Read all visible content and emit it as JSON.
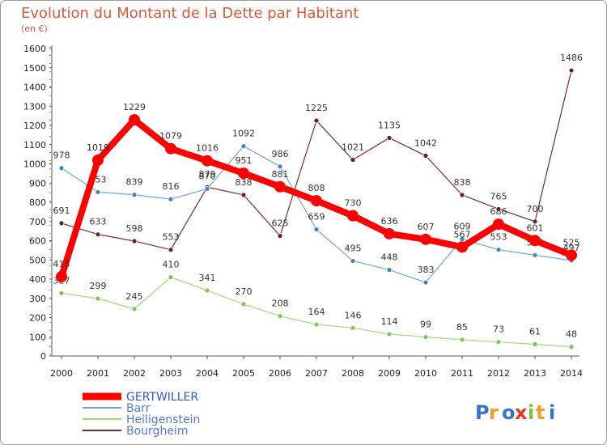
{
  "chart_data": {
    "type": "line",
    "title": "Evolution du Montant de la Dette par Habitant",
    "subtitle": "(en €)",
    "x": [
      "2000",
      "2001",
      "2002",
      "2003",
      "2004",
      "2005",
      "2006",
      "2007",
      "2008",
      "2009",
      "2010",
      "2011",
      "2012",
      "2013",
      "2014"
    ],
    "ylim": [
      0,
      1600
    ],
    "yticks": [
      0,
      100,
      200,
      300,
      400,
      500,
      600,
      700,
      800,
      900,
      1000,
      1100,
      1200,
      1300,
      1400,
      1500,
      1600
    ],
    "grid": false,
    "legend_position": "bottom-left",
    "series": [
      {
        "name": "GERTWILLER",
        "color": "#ff0000",
        "marker_color": "#ff0000",
        "values": [
          413,
          1019,
          1229,
          1079,
          1016,
          951,
          881,
          808,
          730,
          636,
          607,
          567,
          686,
          601,
          525
        ],
        "labels": [
          "413",
          "1019",
          "1229",
          "1079",
          "1016",
          "951",
          "881",
          "808",
          "730",
          "636",
          "607",
          "567",
          "686",
          "601",
          "525"
        ]
      },
      {
        "name": "Barr",
        "color": "#6aa6d8",
        "marker_color": "#3f83c4",
        "values": [
          978,
          853,
          839,
          816,
          870,
          1092,
          986,
          659,
          495,
          448,
          383,
          609,
          553,
          525,
          497
        ],
        "labels": [
          "978",
          "853",
          "839",
          "816",
          "870",
          "1092",
          "986",
          "659",
          "495",
          "448",
          "383",
          "609",
          "553",
          "525",
          "497"
        ]
      },
      {
        "name": "Heiligenstein",
        "color": "#9ed97a",
        "marker_color": "#7bc74f",
        "values": [
          327,
          299,
          245,
          410,
          341,
          270,
          208,
          164,
          146,
          114,
          99,
          85,
          73,
          61,
          48
        ],
        "labels": [
          "327",
          "299",
          "245",
          "410",
          "341",
          "270",
          "208",
          "164",
          "146",
          "114",
          "99",
          "85",
          "73",
          "61",
          "48"
        ]
      },
      {
        "name": "Bourgheim",
        "color": "#7a2a2a",
        "marker_color": "#6b1f1f",
        "values": [
          691,
          633,
          598,
          553,
          879,
          838,
          625,
          1225,
          1021,
          1135,
          1042,
          838,
          765,
          700,
          1486
        ],
        "labels": [
          "691",
          "633",
          "598",
          "553",
          "879",
          "838",
          "625",
          "1225",
          "1021",
          "1135",
          "1042",
          "838",
          "765",
          "700",
          "1486"
        ]
      }
    ]
  },
  "logo": {
    "text": "Proxiti"
  }
}
